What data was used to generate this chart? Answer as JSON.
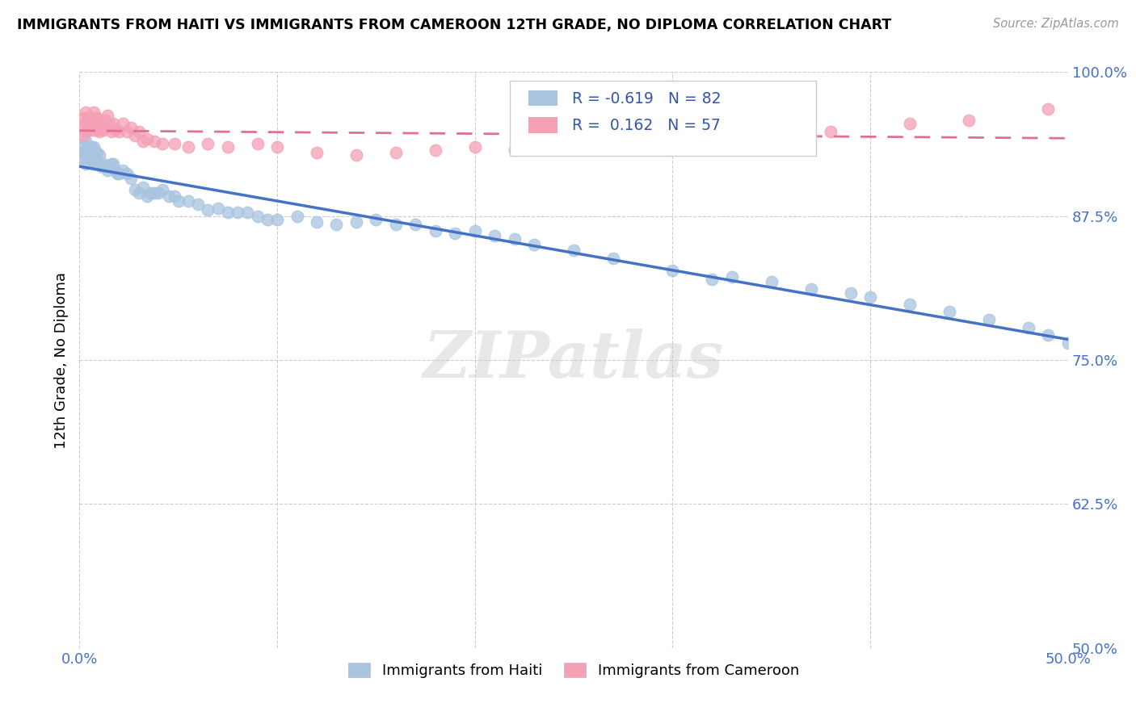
{
  "title": "IMMIGRANTS FROM HAITI VS IMMIGRANTS FROM CAMEROON 12TH GRADE, NO DIPLOMA CORRELATION CHART",
  "source": "Source: ZipAtlas.com",
  "ylabel_label": "12th Grade, No Diploma",
  "xmin": 0.0,
  "xmax": 0.5,
  "ymin": 0.5,
  "ymax": 1.0,
  "x_tick_labels": [
    "0.0%",
    "",
    "",
    "",
    "",
    "50.0%"
  ],
  "y_tick_labels": [
    "50.0%",
    "62.5%",
    "75.0%",
    "87.5%",
    "100.0%"
  ],
  "haiti_color": "#a8c4e0",
  "cameroon_color": "#f4a0b5",
  "haiti_line_color": "#4472c4",
  "cameroon_line_color": "#e07090",
  "watermark": "ZIPatlas",
  "legend_haiti_label": "Immigrants from Haiti",
  "legend_cameroon_label": "Immigrants from Cameroon",
  "R_haiti": -0.619,
  "N_haiti": 82,
  "R_cameroon": 0.162,
  "N_cameroon": 57,
  "haiti_x": [
    0.001,
    0.002,
    0.002,
    0.003,
    0.003,
    0.003,
    0.004,
    0.004,
    0.005,
    0.005,
    0.006,
    0.006,
    0.007,
    0.007,
    0.008,
    0.008,
    0.009,
    0.009,
    0.01,
    0.01,
    0.011,
    0.012,
    0.013,
    0.014,
    0.015,
    0.016,
    0.017,
    0.018,
    0.019,
    0.02,
    0.022,
    0.024,
    0.026,
    0.028,
    0.03,
    0.032,
    0.034,
    0.036,
    0.038,
    0.04,
    0.042,
    0.045,
    0.048,
    0.05,
    0.055,
    0.06,
    0.065,
    0.07,
    0.075,
    0.08,
    0.085,
    0.09,
    0.095,
    0.1,
    0.11,
    0.12,
    0.13,
    0.14,
    0.15,
    0.16,
    0.17,
    0.18,
    0.19,
    0.2,
    0.21,
    0.22,
    0.23,
    0.25,
    0.27,
    0.3,
    0.32,
    0.33,
    0.35,
    0.37,
    0.39,
    0.4,
    0.42,
    0.44,
    0.46,
    0.48,
    0.49,
    0.5
  ],
  "haiti_y": [
    0.93,
    0.935,
    0.925,
    0.94,
    0.93,
    0.92,
    0.935,
    0.925,
    0.935,
    0.925,
    0.935,
    0.93,
    0.935,
    0.92,
    0.93,
    0.92,
    0.93,
    0.92,
    0.928,
    0.92,
    0.918,
    0.92,
    0.918,
    0.915,
    0.918,
    0.92,
    0.92,
    0.915,
    0.912,
    0.912,
    0.915,
    0.912,
    0.908,
    0.898,
    0.895,
    0.9,
    0.892,
    0.895,
    0.895,
    0.895,
    0.898,
    0.892,
    0.892,
    0.888,
    0.888,
    0.885,
    0.88,
    0.882,
    0.878,
    0.878,
    0.878,
    0.875,
    0.872,
    0.872,
    0.875,
    0.87,
    0.868,
    0.87,
    0.872,
    0.868,
    0.868,
    0.862,
    0.86,
    0.862,
    0.858,
    0.855,
    0.85,
    0.845,
    0.838,
    0.828,
    0.82,
    0.822,
    0.818,
    0.812,
    0.808,
    0.805,
    0.798,
    0.792,
    0.785,
    0.778,
    0.772,
    0.765
  ],
  "cameroon_x": [
    0.001,
    0.002,
    0.002,
    0.003,
    0.003,
    0.004,
    0.004,
    0.005,
    0.005,
    0.006,
    0.006,
    0.007,
    0.007,
    0.008,
    0.008,
    0.009,
    0.009,
    0.01,
    0.01,
    0.011,
    0.012,
    0.013,
    0.014,
    0.015,
    0.016,
    0.017,
    0.018,
    0.02,
    0.022,
    0.024,
    0.026,
    0.028,
    0.03,
    0.032,
    0.034,
    0.038,
    0.042,
    0.048,
    0.055,
    0.065,
    0.075,
    0.09,
    0.1,
    0.12,
    0.14,
    0.16,
    0.18,
    0.2,
    0.22,
    0.25,
    0.28,
    0.32,
    0.35,
    0.38,
    0.42,
    0.45,
    0.49
  ],
  "cameroon_y": [
    0.95,
    0.96,
    0.945,
    0.965,
    0.955,
    0.96,
    0.95,
    0.96,
    0.95,
    0.96,
    0.95,
    0.965,
    0.955,
    0.96,
    0.95,
    0.96,
    0.95,
    0.958,
    0.948,
    0.952,
    0.95,
    0.958,
    0.962,
    0.955,
    0.948,
    0.955,
    0.95,
    0.948,
    0.955,
    0.948,
    0.952,
    0.945,
    0.948,
    0.94,
    0.942,
    0.94,
    0.938,
    0.938,
    0.935,
    0.938,
    0.935,
    0.938,
    0.935,
    0.93,
    0.928,
    0.93,
    0.932,
    0.935,
    0.932,
    0.938,
    0.938,
    0.942,
    0.945,
    0.948,
    0.955,
    0.958,
    0.968
  ]
}
